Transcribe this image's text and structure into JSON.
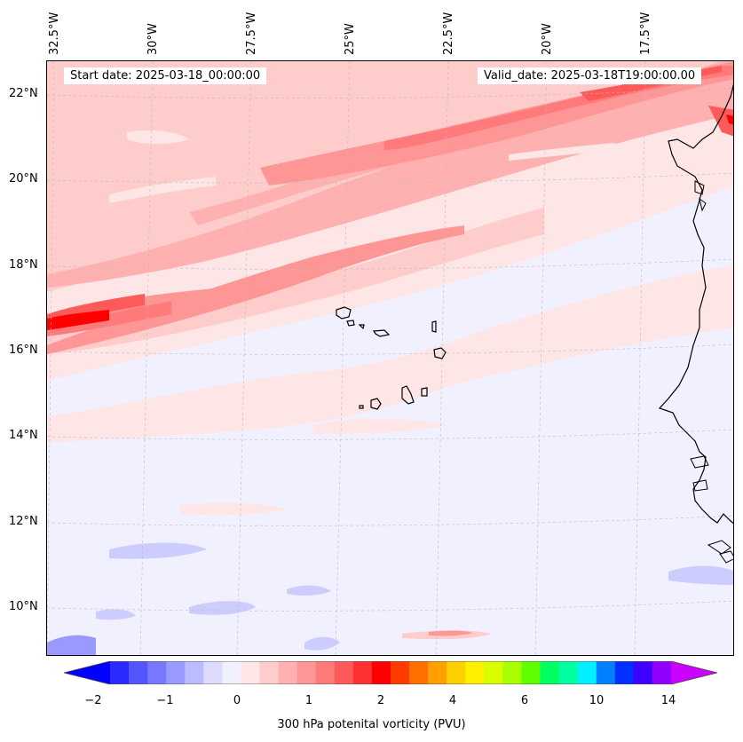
{
  "map": {
    "start_date": "Start date: 2025-03-18_00:00:00",
    "valid_date": "Valid_date: 2025-03-18T19:00:00.00",
    "lon_labels": [
      "32.5°W",
      "30°W",
      "27.5°W",
      "25°W",
      "22.5°W",
      "20°W",
      "17.5°W"
    ],
    "lat_labels": [
      "22°N",
      "20°N",
      "18°N",
      "16°N",
      "14°N",
      "12°N",
      "10°N"
    ],
    "extent": {
      "lon": [
        -32.5,
        -15.2
      ],
      "lat": [
        8.9,
        22.8
      ]
    }
  },
  "colorbar": {
    "title": "300 hPa potenital vorticity (PVU)",
    "tick_labels": [
      "−2",
      "−1",
      "0",
      "1",
      "2",
      "4",
      "6",
      "10",
      "14"
    ],
    "colors": [
      "#0000ff",
      "#2a2aff",
      "#5555ff",
      "#7777ff",
      "#9999ff",
      "#bbbbff",
      "#dddcff",
      "#f0f0ff",
      "#ffe6e6",
      "#ffcccc",
      "#ffb0b0",
      "#ff9696",
      "#ff7a7a",
      "#ff5a5a",
      "#ff3030",
      "#ff0000",
      "#ff3c00",
      "#ff7000",
      "#ffa000",
      "#ffd000",
      "#fff000",
      "#d8ff00",
      "#a8ff00",
      "#60ff00",
      "#00ff60",
      "#00ffa0",
      "#00f0ff",
      "#0080ff",
      "#0030ff",
      "#4000ff",
      "#9000ff"
    ],
    "extend_low_color": "#0000ff",
    "extend_high_color": "#cc00ff"
  }
}
